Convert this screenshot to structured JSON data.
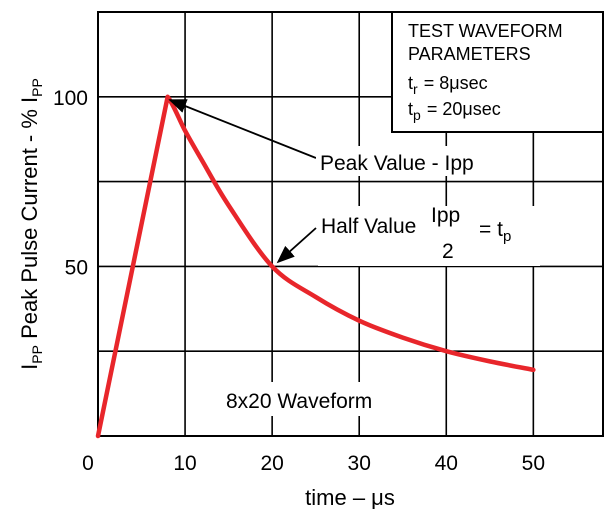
{
  "chart_data": {
    "type": "line",
    "title": "",
    "xlabel": "time – μs",
    "ylabel_main": "I",
    "ylabel_sub": "PP",
    "ylabel_rest": " Peak Pulse Current - % I",
    "ylabel_sub2": "PP",
    "xlim": [
      0,
      58
    ],
    "ylim": [
      0,
      125
    ],
    "x_ticks": [
      0,
      10,
      20,
      30,
      40,
      50
    ],
    "x_tick_labels": [
      "0",
      "10",
      "20",
      "30",
      "40",
      "50"
    ],
    "y_ticks": [
      50,
      100
    ],
    "y_tick_labels": [
      "50",
      "100"
    ],
    "grid": true,
    "series": [
      {
        "color": "#e8262b",
        "x": [
          0,
          8,
          10,
          12,
          15,
          20,
          25,
          30,
          35,
          40,
          45,
          50
        ],
        "y": [
          0,
          100,
          90,
          81,
          68,
          50,
          41,
          34,
          29,
          25,
          22,
          19.5
        ]
      }
    ],
    "annotations": {
      "peak_label": "Peak Value - Ipp",
      "half_label": "Half Value",
      "half_frac_num": "Ipp",
      "half_frac_den": "2",
      "half_eq": "= t",
      "half_eq_sub": "p",
      "waveform_label": "8x20 Waveform"
    },
    "legend_box": {
      "line1": "TEST WAVEFORM",
      "line2": "PARAMETERS",
      "tr_sym": "t",
      "tr_sub": "r",
      "tr_val": "= 8μsec",
      "tp_sym": "t",
      "tp_sub": "p",
      "tp_val": "= 20μsec"
    }
  }
}
